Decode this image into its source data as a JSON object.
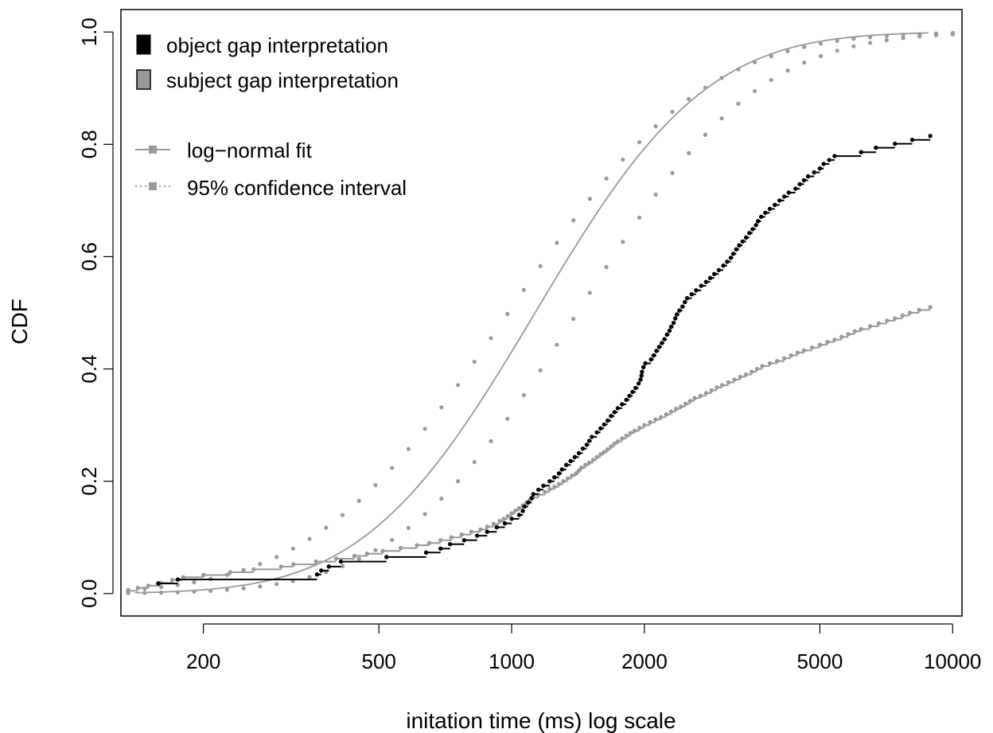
{
  "chart_data": {
    "type": "step",
    "title": "",
    "xlabel": "initation time (ms) log scale",
    "ylabel": "CDF",
    "x_scale": "log",
    "xlim": [
      130,
      10500
    ],
    "ylim": [
      -0.04,
      1.04
    ],
    "xticks": [
      200,
      500,
      1000,
      2000,
      5000,
      10000
    ],
    "xtick_labels": [
      "200",
      "500",
      "1000",
      "2000",
      "5000",
      "10000"
    ],
    "yticks": [
      0.0,
      0.2,
      0.4,
      0.6,
      0.8,
      1.0
    ],
    "ytick_labels": [
      "0.0",
      "0.2",
      "0.4",
      "0.6",
      "0.8",
      "1.0"
    ],
    "grid": false,
    "legend_placement": "top-left",
    "colors": {
      "object": "#000000",
      "subject": "#999999",
      "fit": "#999999",
      "ci": "#999999"
    },
    "legend": [
      {
        "label": "object gap interpretation",
        "kind": "box-black"
      },
      {
        "label": "subject gap interpretation",
        "kind": "box-gray"
      },
      {
        "label": "log−normal fit",
        "kind": "line"
      },
      {
        "label": "95% confidence interval",
        "kind": "dotted"
      }
    ],
    "series": [
      {
        "name": "object gap interpretation",
        "x": [
          158,
          175,
          362,
          370,
          385,
          410,
          520,
          640,
          690,
          725,
          780,
          835,
          880,
          925,
          965,
          1000,
          1040,
          1060,
          1070,
          1090,
          1110,
          1120,
          1150,
          1180,
          1220,
          1250,
          1280,
          1300,
          1330,
          1360,
          1390,
          1420,
          1450,
          1480,
          1500,
          1520,
          1560,
          1590,
          1620,
          1650,
          1680,
          1710,
          1740,
          1780,
          1820,
          1850,
          1880,
          1910,
          1940,
          1960,
          1970,
          1975,
          1990,
          2010,
          2070,
          2100,
          2130,
          2160,
          2190,
          2220,
          2250,
          2280,
          2300,
          2330,
          2350,
          2370,
          2400,
          2440,
          2470,
          2500,
          2560,
          2620,
          2690,
          2760,
          2820,
          2880,
          2950,
          3020,
          3080,
          3140,
          3180,
          3230,
          3280,
          3340,
          3400,
          3460,
          3520,
          3580,
          3620,
          3680,
          3760,
          3850,
          3950,
          4050,
          4150,
          4250,
          4400,
          4500,
          4600,
          4700,
          4850,
          5000,
          5100,
          5250,
          5400,
          6200,
          6700,
          7400,
          8100,
          8900
        ],
        "y": [
          0.018,
          0.025,
          0.034,
          0.041,
          0.048,
          0.057,
          0.065,
          0.073,
          0.08,
          0.088,
          0.095,
          0.103,
          0.11,
          0.118,
          0.125,
          0.133,
          0.14,
          0.147,
          0.155,
          0.162,
          0.17,
          0.177,
          0.185,
          0.192,
          0.2,
          0.207,
          0.214,
          0.221,
          0.229,
          0.236,
          0.243,
          0.25,
          0.258,
          0.265,
          0.272,
          0.279,
          0.287,
          0.294,
          0.301,
          0.308,
          0.316,
          0.323,
          0.33,
          0.337,
          0.345,
          0.352,
          0.359,
          0.366,
          0.374,
          0.381,
          0.388,
          0.395,
          0.403,
          0.41,
          0.417,
          0.424,
          0.432,
          0.439,
          0.446,
          0.453,
          0.461,
          0.468,
          0.475,
          0.482,
          0.49,
          0.497,
          0.504,
          0.511,
          0.519,
          0.526,
          0.533,
          0.54,
          0.548,
          0.555,
          0.562,
          0.569,
          0.576,
          0.584,
          0.591,
          0.598,
          0.605,
          0.613,
          0.62,
          0.627,
          0.634,
          0.642,
          0.649,
          0.656,
          0.663,
          0.671,
          0.678,
          0.685,
          0.692,
          0.7,
          0.707,
          0.714,
          0.721,
          0.729,
          0.736,
          0.743,
          0.75,
          0.757,
          0.765,
          0.772,
          0.779,
          0.786,
          0.794,
          0.801,
          0.808,
          0.815
        ]
      },
      {
        "name": "subject gap interpretation",
        "x": [
          135,
          142,
          150,
          160,
          170,
          180,
          200,
          230,
          260,
          300,
          320,
          360,
          400,
          440,
          470,
          510,
          560,
          610,
          650,
          690,
          730,
          770,
          810,
          850,
          880,
          910,
          940,
          960,
          980,
          1000,
          1020,
          1040,
          1060,
          1080,
          1100,
          1120,
          1150,
          1190,
          1220,
          1250,
          1280,
          1310,
          1340,
          1370,
          1400,
          1420,
          1440,
          1470,
          1500,
          1530,
          1560,
          1590,
          1620,
          1650,
          1680,
          1710,
          1740,
          1780,
          1820,
          1860,
          1900,
          1950,
          2000,
          2060,
          2120,
          2180,
          2240,
          2300,
          2360,
          2420,
          2480,
          2540,
          2600,
          2680,
          2760,
          2840,
          2920,
          3000,
          3100,
          3200,
          3300,
          3400,
          3500,
          3600,
          3700,
          3850,
          4000,
          4150,
          4300,
          4450,
          4600,
          4800,
          5000,
          5200,
          5400,
          5600,
          5800,
          6000,
          6200,
          6500,
          6800,
          7100,
          7400,
          7700,
          8000,
          8400,
          8900
        ],
        "y": [
          0.005,
          0.01,
          0.014,
          0.019,
          0.024,
          0.029,
          0.033,
          0.038,
          0.043,
          0.048,
          0.052,
          0.057,
          0.062,
          0.067,
          0.071,
          0.076,
          0.081,
          0.086,
          0.09,
          0.095,
          0.1,
          0.105,
          0.11,
          0.114,
          0.119,
          0.124,
          0.129,
          0.133,
          0.138,
          0.143,
          0.148,
          0.152,
          0.157,
          0.162,
          0.167,
          0.171,
          0.176,
          0.181,
          0.186,
          0.19,
          0.195,
          0.2,
          0.205,
          0.21,
          0.214,
          0.219,
          0.224,
          0.229,
          0.233,
          0.238,
          0.243,
          0.248,
          0.252,
          0.257,
          0.262,
          0.267,
          0.271,
          0.276,
          0.281,
          0.286,
          0.29,
          0.295,
          0.3,
          0.305,
          0.31,
          0.314,
          0.319,
          0.324,
          0.329,
          0.333,
          0.338,
          0.343,
          0.348,
          0.352,
          0.357,
          0.362,
          0.367,
          0.371,
          0.376,
          0.381,
          0.386,
          0.39,
          0.395,
          0.4,
          0.405,
          0.41,
          0.414,
          0.419,
          0.424,
          0.429,
          0.433,
          0.438,
          0.443,
          0.448,
          0.452,
          0.457,
          0.462,
          0.467,
          0.471,
          0.476,
          0.481,
          0.486,
          0.49,
          0.495,
          0.5,
          0.505,
          0.51
        ]
      }
    ],
    "fit": {
      "name": "log−normal fit",
      "meanlog": 7.03,
      "sdlog": 0.7,
      "x_range": [
        140,
        8800
      ]
    },
    "confidence_interval": {
      "name": "95% confidence interval",
      "lower": {
        "meanlog": 7.25,
        "sdlog": 0.74
      },
      "upper": {
        "meanlog": 6.89,
        "sdlog": 0.8
      },
      "x_range": [
        135,
        10000
      ]
    }
  }
}
